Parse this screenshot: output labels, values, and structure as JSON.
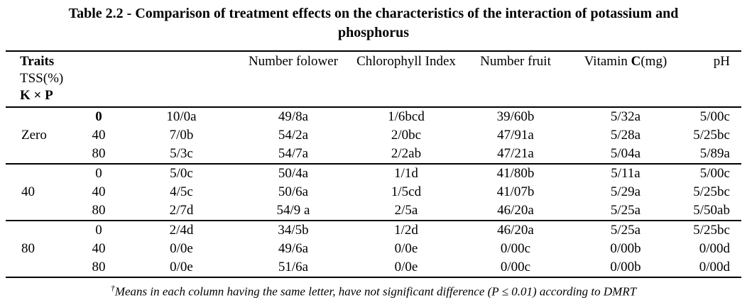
{
  "title": {
    "line1": "Table 2.2 - Comparison of treatment effects on the characteristics of the interaction of potassium and",
    "line2": "phosphorus"
  },
  "header": {
    "traits": "Traits",
    "tss": "TSS(%)",
    "kxp": "K × P",
    "number_folower": "Number folower",
    "chlorophyll_index": "Chlorophyll Index",
    "number_fruit": "Number fruit",
    "vitamin_pre": "Vitamin ",
    "vitamin_c": "C",
    "vitamin_post": "(mg)",
    "ph": "pH"
  },
  "blocks": [
    {
      "k_label": "Zero",
      "rows": [
        {
          "p": "0",
          "tss": "10/0a",
          "folower": "49/8a",
          "chlorophyll": "1/6bcd",
          "fruit": "39/60b",
          "vitamin": "5/32a",
          "ph": "5/00c"
        },
        {
          "p": "40",
          "tss": "7/0b",
          "folower": "54/2a",
          "chlorophyll": "2/0bc",
          "fruit": "47/91a",
          "vitamin": "5/28a",
          "ph": "5/25bc"
        },
        {
          "p": "80",
          "tss": "5/3c",
          "folower": "54/7a",
          "chlorophyll": "2/2ab",
          "fruit": "47/21a",
          "vitamin": "5/04a",
          "ph": "5/89a"
        }
      ]
    },
    {
      "k_label": "40",
      "rows": [
        {
          "p": "0",
          "tss": "5/0c",
          "folower": "50/4a",
          "chlorophyll": "1/1d",
          "fruit": "41/80b",
          "vitamin": "5/11a",
          "ph": "5/00c"
        },
        {
          "p": "40",
          "tss": "4/5c",
          "folower": "50/6a",
          "chlorophyll": "1/5cd",
          "fruit": "41/07b",
          "vitamin": "5/29a",
          "ph": "5/25bc"
        },
        {
          "p": "80",
          "tss": "2/7d",
          "folower": "54/9 a",
          "chlorophyll": "2/5a",
          "fruit": "46/20a",
          "vitamin": "5/25a",
          "ph": "5/50ab"
        }
      ]
    },
    {
      "k_label": "80",
      "rows": [
        {
          "p": "0",
          "tss": "2/4d",
          "folower": "34/5b",
          "chlorophyll": "1/2d",
          "fruit": "46/20a",
          "vitamin": "5/25a",
          "ph": "5/25bc"
        },
        {
          "p": "40",
          "tss": "0/0e",
          "folower": "49/6a",
          "chlorophyll": "0/0e",
          "fruit": "0/00c",
          "vitamin": "0/00b",
          "ph": "0/00d"
        },
        {
          "p": "80",
          "tss": "0/0e",
          "folower": "51/6a",
          "chlorophyll": "0/0e",
          "fruit": "0/00c",
          "vitamin": "0/00b",
          "ph": "0/00d"
        }
      ]
    }
  ],
  "footnote": {
    "marker": "†",
    "text": "Means in each column having the same letter, have not significant difference (P ≤ 0.01) according to DMRT"
  }
}
